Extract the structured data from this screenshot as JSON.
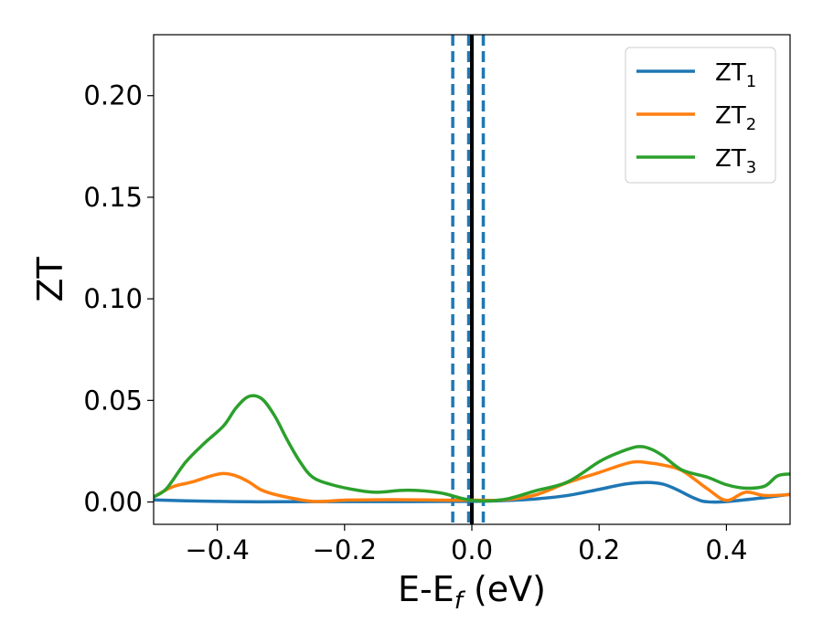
{
  "chart_data": {
    "type": "line",
    "xlabel": "E-E",
    "xlabel_sub": "f",
    "xlabel_unit": " (eV)",
    "ylabel": "ZT",
    "xlim": [
      -0.5,
      0.5
    ],
    "ylim": [
      -0.011,
      0.23
    ],
    "grid": false,
    "legend_position": "top-right",
    "x_ticks": [
      {
        "value": -0.4,
        "label": "−0.4"
      },
      {
        "value": -0.2,
        "label": "−0.2"
      },
      {
        "value": 0.0,
        "label": "0.0"
      },
      {
        "value": 0.2,
        "label": "0.2"
      },
      {
        "value": 0.4,
        "label": "0.4"
      }
    ],
    "y_ticks": [
      {
        "value": 0.0,
        "label": "0.00"
      },
      {
        "value": 0.05,
        "label": "0.05"
      },
      {
        "value": 0.1,
        "label": "0.10"
      },
      {
        "value": 0.15,
        "label": "0.15"
      },
      {
        "value": 0.2,
        "label": "0.20"
      }
    ],
    "vlines": [
      {
        "x": -0.03,
        "style": "dashed",
        "color": "#1f77b4"
      },
      {
        "x": -0.005,
        "style": "dashed",
        "color": "#1f77b4"
      },
      {
        "x": 0.018,
        "style": "dashed",
        "color": "#1f77b4"
      },
      {
        "x": 0.0,
        "style": "solid",
        "color": "#000000"
      }
    ],
    "series": [
      {
        "name": "ZT",
        "sub": "1",
        "color": "#1f77b4",
        "x": [
          -0.5,
          -0.45,
          -0.4,
          -0.35,
          -0.3,
          -0.2,
          -0.1,
          0.0,
          0.05,
          0.1,
          0.15,
          0.2,
          0.25,
          0.3,
          0.35,
          0.37,
          0.4,
          0.45,
          0.5
        ],
        "y": [
          0.001,
          0.0006,
          0.0003,
          0.0001,
          0.0001,
          0.0002,
          0.0002,
          0.0003,
          0.0007,
          0.0015,
          0.0032,
          0.0062,
          0.0092,
          0.0088,
          0.0018,
          0.0001,
          0.0002,
          0.0018,
          0.0038
        ]
      },
      {
        "name": "ZT",
        "sub": "2",
        "color": "#ff7f0e",
        "x": [
          -0.5,
          -0.47,
          -0.44,
          -0.41,
          -0.39,
          -0.37,
          -0.35,
          -0.33,
          -0.3,
          -0.25,
          -0.2,
          -0.15,
          -0.1,
          -0.05,
          0.0,
          0.05,
          0.1,
          0.15,
          0.2,
          0.25,
          0.28,
          0.3,
          0.33,
          0.37,
          0.4,
          0.43,
          0.46,
          0.5
        ],
        "y": [
          0.0025,
          0.0075,
          0.0098,
          0.0128,
          0.014,
          0.0128,
          0.0098,
          0.0058,
          0.003,
          0.0003,
          0.0009,
          0.0011,
          0.0011,
          0.0009,
          0.0009,
          0.001,
          0.0035,
          0.0095,
          0.0145,
          0.0195,
          0.0192,
          0.0182,
          0.0155,
          0.0065,
          0.0008,
          0.0048,
          0.0032,
          0.0036
        ]
      },
      {
        "name": "ZT",
        "sub": "3",
        "color": "#2ca02c",
        "x": [
          -0.5,
          -0.48,
          -0.45,
          -0.42,
          -0.39,
          -0.37,
          -0.35,
          -0.33,
          -0.31,
          -0.29,
          -0.27,
          -0.25,
          -0.22,
          -0.18,
          -0.15,
          -0.1,
          -0.05,
          0.0,
          0.05,
          0.1,
          0.15,
          0.2,
          0.23,
          0.26,
          0.28,
          0.3,
          0.33,
          0.37,
          0.4,
          0.43,
          0.46,
          0.48,
          0.5
        ],
        "y": [
          0.0025,
          0.0065,
          0.0195,
          0.029,
          0.0375,
          0.0465,
          0.052,
          0.0508,
          0.0425,
          0.0305,
          0.0198,
          0.0122,
          0.0085,
          0.0058,
          0.0048,
          0.0058,
          0.0045,
          0.0008,
          0.0012,
          0.0055,
          0.0098,
          0.0198,
          0.0242,
          0.0272,
          0.0262,
          0.0228,
          0.0158,
          0.0122,
          0.0085,
          0.0068,
          0.0078,
          0.0128,
          0.0138
        ]
      }
    ]
  }
}
